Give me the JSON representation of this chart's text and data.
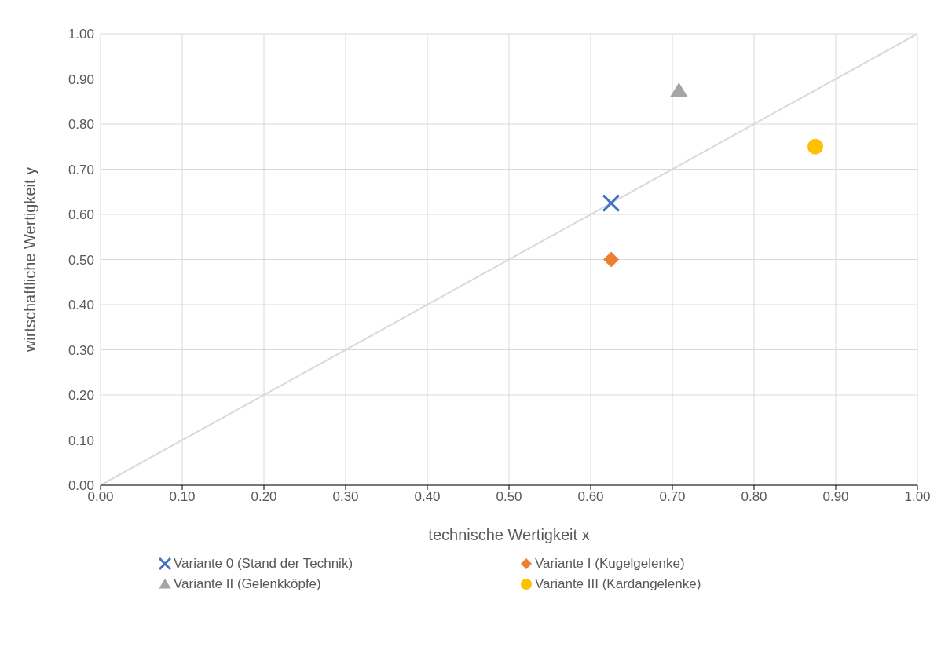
{
  "chart_data": {
    "type": "scatter",
    "xlabel": "technische Wertigkeit x",
    "ylabel": "wirtschaftliche Wertigkeit y",
    "xlim": [
      0,
      1
    ],
    "ylim": [
      0,
      1
    ],
    "xticks": [
      {
        "value": 0,
        "label": "0.00"
      },
      {
        "value": 0.1,
        "label": "0.10"
      },
      {
        "value": 0.2,
        "label": "0.20"
      },
      {
        "value": 0.3,
        "label": "0.30"
      },
      {
        "value": 0.4,
        "label": "0.40"
      },
      {
        "value": 0.5,
        "label": "0.50"
      },
      {
        "value": 0.6,
        "label": "0.60"
      },
      {
        "value": 0.7,
        "label": "0.70"
      },
      {
        "value": 0.8,
        "label": "0.80"
      },
      {
        "value": 0.9,
        "label": "0.90"
      },
      {
        "value": 1,
        "label": "1.00"
      }
    ],
    "yticks": [
      {
        "value": 0,
        "label": "0.00"
      },
      {
        "value": 0.1,
        "label": "0.10"
      },
      {
        "value": 0.2,
        "label": "0.20"
      },
      {
        "value": 0.3,
        "label": "0.30"
      },
      {
        "value": 0.4,
        "label": "0.40"
      },
      {
        "value": 0.5,
        "label": "0.50"
      },
      {
        "value": 0.6,
        "label": "0.60"
      },
      {
        "value": 0.7,
        "label": "0.70"
      },
      {
        "value": 0.8,
        "label": "0.80"
      },
      {
        "value": 0.9,
        "label": "0.90"
      },
      {
        "value": 1,
        "label": "1.00"
      }
    ],
    "grid": true,
    "legend": "bottom",
    "series": [
      {
        "type": "line",
        "color": "#d9d9d9",
        "x": [
          0,
          1
        ],
        "values": [
          0,
          1
        ],
        "marker": "none"
      },
      {
        "name": "Variante 0 (Stand der Technik)",
        "color": "#4472c4",
        "x": [
          0.625
        ],
        "values": [
          0.625
        ],
        "marker": "cross"
      },
      {
        "name": "Variante I (Kugelgelenke)",
        "color": "#ed7d31",
        "x": [
          0.625
        ],
        "values": [
          0.5
        ],
        "marker": "diamond"
      },
      {
        "name": "Variante II (Gelenkköpfe)",
        "color": "#a5a5a5",
        "x": [
          0.708
        ],
        "values": [
          0.875
        ],
        "marker": "triangle"
      },
      {
        "name": "Variante III (Kardangelenke)",
        "color": "#ffc000",
        "x": [
          0.875
        ],
        "values": [
          0.75
        ],
        "marker": "circle"
      }
    ]
  }
}
